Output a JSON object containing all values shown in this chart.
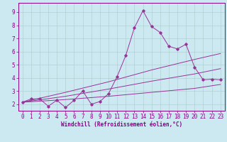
{
  "xlabel": "Windchill (Refroidissement éolien,°C)",
  "background_color": "#cce8f0",
  "line_color": "#993399",
  "xlim": [
    -0.5,
    23.5
  ],
  "ylim": [
    1.5,
    9.7
  ],
  "yticks": [
    2,
    3,
    4,
    5,
    6,
    7,
    8,
    9
  ],
  "xticks": [
    0,
    1,
    2,
    3,
    4,
    5,
    6,
    7,
    8,
    9,
    10,
    11,
    12,
    13,
    14,
    15,
    16,
    17,
    18,
    19,
    20,
    21,
    22,
    23
  ],
  "series1_x": [
    0,
    1,
    2,
    3,
    4,
    5,
    6,
    7,
    8,
    9,
    10,
    11,
    12,
    13,
    14,
    15,
    16,
    17,
    18,
    19,
    20,
    21,
    22,
    23
  ],
  "series1_y": [
    2.15,
    2.4,
    2.4,
    1.85,
    2.3,
    1.75,
    2.3,
    3.0,
    2.0,
    2.2,
    2.8,
    4.1,
    5.7,
    7.8,
    9.1,
    7.9,
    7.45,
    6.4,
    6.2,
    6.55,
    4.8,
    3.85,
    3.9,
    3.85
  ],
  "series2_x": [
    0,
    5,
    10,
    15,
    20,
    23
  ],
  "series2_y": [
    2.15,
    2.35,
    2.6,
    2.9,
    3.2,
    3.5
  ],
  "series3_x": [
    0,
    5,
    10,
    15,
    20,
    23
  ],
  "series3_y": [
    2.15,
    2.9,
    3.7,
    4.6,
    5.4,
    5.85
  ],
  "series4_x": [
    0,
    5,
    10,
    15,
    20,
    23
  ],
  "series4_y": [
    2.15,
    2.6,
    3.15,
    3.75,
    4.3,
    4.7
  ],
  "grid_color": "#aacccc",
  "font_color": "#880088",
  "xlabel_fontsize": 5.5,
  "tick_fontsize": 5.5
}
